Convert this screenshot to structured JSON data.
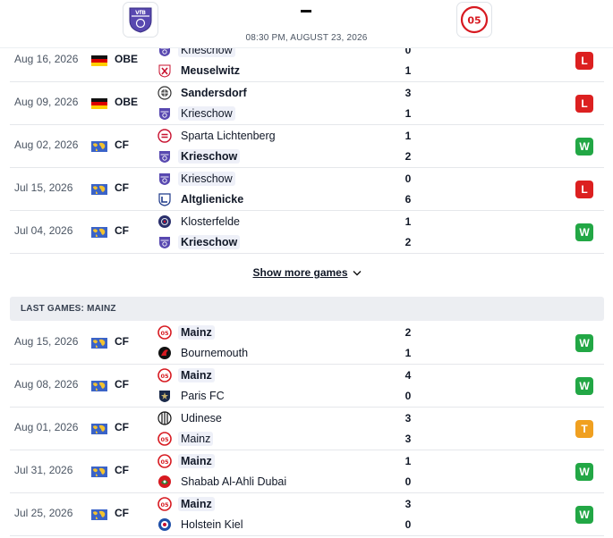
{
  "header": {
    "score": "-",
    "kickoff": "08:30 PM, AUGUST 23, 2026",
    "home_logo_icon": "vfb-krieschow-crest-icon",
    "away_logo_icon": "mainz-05-crest-icon"
  },
  "colors": {
    "win": "#22a745",
    "loss": "#dc2020",
    "draw": "#f0a020",
    "highlight": "#eef0f8"
  },
  "home_games": [
    {
      "date": "Aug 16, 2026",
      "flag": "germany-flag",
      "competition": "OBE",
      "team1": {
        "name": "Krieschow",
        "icon": "krieschow-icon",
        "bold": false,
        "highlight": true
      },
      "team2": {
        "name": "Meuselwitz",
        "icon": "meuselwitz-icon",
        "bold": true,
        "highlight": false
      },
      "score1": "0",
      "score2": "1",
      "result": "L"
    },
    {
      "date": "Aug 09, 2026",
      "flag": "germany-flag",
      "competition": "OBE",
      "team1": {
        "name": "Sandersdorf",
        "icon": "sandersdorf-icon",
        "bold": true,
        "highlight": false
      },
      "team2": {
        "name": "Krieschow",
        "icon": "krieschow-icon",
        "bold": false,
        "highlight": true
      },
      "score1": "3",
      "score2": "1",
      "result": "L"
    },
    {
      "date": "Aug 02, 2026",
      "flag": "world-flag",
      "competition": "CF",
      "team1": {
        "name": "Sparta Lichtenberg",
        "icon": "sparta-lichtenberg-icon",
        "bold": false,
        "highlight": false
      },
      "team2": {
        "name": "Krieschow",
        "icon": "krieschow-icon",
        "bold": true,
        "highlight": true
      },
      "score1": "1",
      "score2": "2",
      "result": "W"
    },
    {
      "date": "Jul 15, 2026",
      "flag": "world-flag",
      "competition": "CF",
      "team1": {
        "name": "Krieschow",
        "icon": "krieschow-icon",
        "bold": false,
        "highlight": true
      },
      "team2": {
        "name": "Altglienicke",
        "icon": "altglienicke-icon",
        "bold": true,
        "highlight": false
      },
      "score1": "0",
      "score2": "6",
      "result": "L"
    },
    {
      "date": "Jul 04, 2026",
      "flag": "world-flag",
      "competition": "CF",
      "team1": {
        "name": "Klosterfelde",
        "icon": "klosterfelde-icon",
        "bold": false,
        "highlight": false
      },
      "team2": {
        "name": "Krieschow",
        "icon": "krieschow-icon",
        "bold": true,
        "highlight": true
      },
      "score1": "1",
      "score2": "2",
      "result": "W"
    }
  ],
  "show_more_label": "Show more games",
  "section_title": "LAST GAMES: MAINZ",
  "away_games": [
    {
      "date": "Aug 15, 2026",
      "flag": "world-flag",
      "competition": "CF",
      "team1": {
        "name": "Mainz",
        "icon": "mainz-icon",
        "bold": true,
        "highlight": true
      },
      "team2": {
        "name": "Bournemouth",
        "icon": "bournemouth-icon",
        "bold": false,
        "highlight": false
      },
      "score1": "2",
      "score2": "1",
      "result": "W"
    },
    {
      "date": "Aug 08, 2026",
      "flag": "world-flag",
      "competition": "CF",
      "team1": {
        "name": "Mainz",
        "icon": "mainz-icon",
        "bold": true,
        "highlight": true
      },
      "team2": {
        "name": "Paris FC",
        "icon": "paris-fc-icon",
        "bold": false,
        "highlight": false
      },
      "score1": "4",
      "score2": "0",
      "result": "W"
    },
    {
      "date": "Aug 01, 2026",
      "flag": "world-flag",
      "competition": "CF",
      "team1": {
        "name": "Udinese",
        "icon": "udinese-icon",
        "bold": false,
        "highlight": false
      },
      "team2": {
        "name": "Mainz",
        "icon": "mainz-icon",
        "bold": false,
        "highlight": true
      },
      "score1": "3",
      "score2": "3",
      "result": "T"
    },
    {
      "date": "Jul 31, 2026",
      "flag": "world-flag",
      "competition": "CF",
      "team1": {
        "name": "Mainz",
        "icon": "mainz-icon",
        "bold": true,
        "highlight": true
      },
      "team2": {
        "name": "Shabab Al-Ahli Dubai",
        "icon": "shabab-al-ahli-icon",
        "bold": false,
        "highlight": false
      },
      "score1": "1",
      "score2": "0",
      "result": "W"
    },
    {
      "date": "Jul 25, 2026",
      "flag": "world-flag",
      "competition": "CF",
      "team1": {
        "name": "Mainz",
        "icon": "mainz-icon",
        "bold": true,
        "highlight": true
      },
      "team2": {
        "name": "Holstein Kiel",
        "icon": "holstein-kiel-icon",
        "bold": false,
        "highlight": false
      },
      "score1": "3",
      "score2": "0",
      "result": "W"
    }
  ]
}
